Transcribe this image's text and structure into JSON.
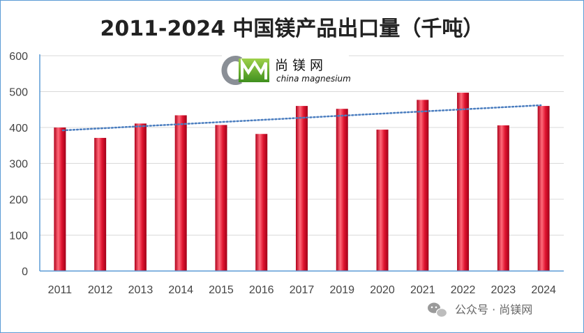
{
  "chart_data": {
    "type": "bar",
    "title": "2011-2024 中国镁产品出口量（千吨）",
    "categories": [
      "2011",
      "2012",
      "2013",
      "2014",
      "2015",
      "2016",
      "2017",
      "2019",
      "2020",
      "2021",
      "2022",
      "2023",
      "2024"
    ],
    "series": [
      {
        "values": [
          400,
          371,
          411,
          434,
          407,
          382,
          460,
          452,
          394,
          477,
          497,
          406,
          460
        ]
      }
    ],
    "trendline": {
      "style": "dotted",
      "color": "#4a7dbf",
      "start": 392,
      "end": 462
    },
    "ylim": [
      0,
      600
    ],
    "yticks": [
      0,
      100,
      200,
      300,
      400,
      500,
      600
    ],
    "grid": true,
    "bar_color": "#d8102a",
    "axis_color": "#5b9bd5"
  },
  "logo": {
    "mark_letters": "CM",
    "name_cn": "尚镁网",
    "name_en": "china magnesium"
  },
  "watermark": {
    "text": "公众号 · 尚镁网"
  }
}
